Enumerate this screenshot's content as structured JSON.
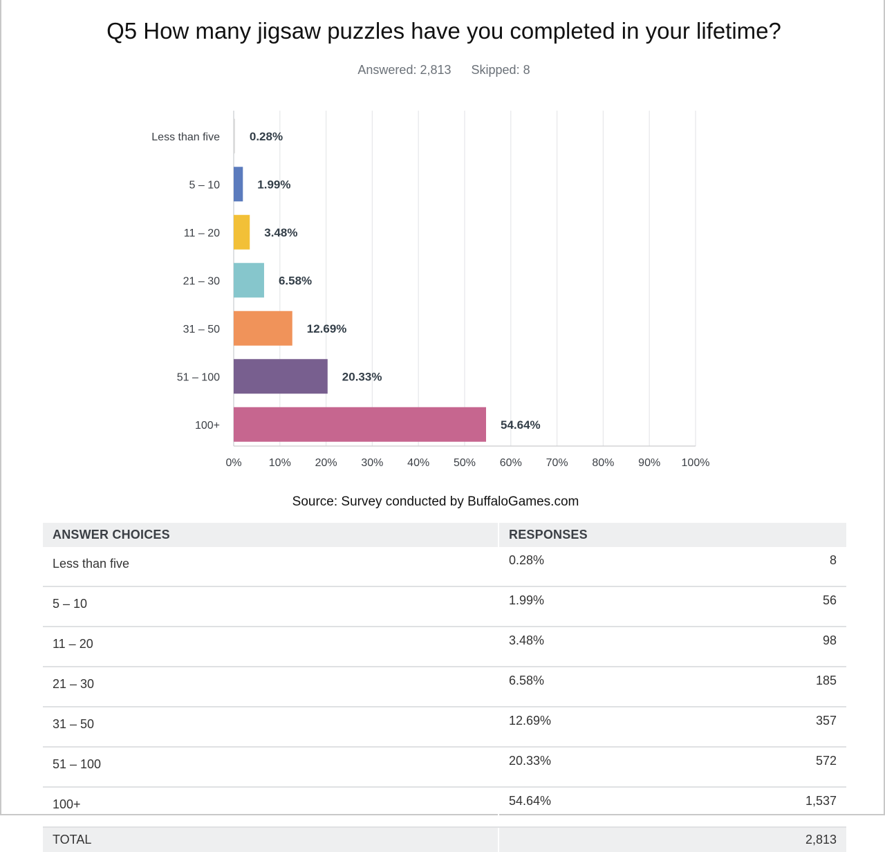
{
  "question": "Q5 How many jigsaw puzzles have you completed in your lifetime?",
  "answered_text": "Answered: 2,813",
  "skipped_text": "Skipped: 8",
  "source": "Source: Survey conducted by BuffaloGames.com",
  "colors": {
    "grid": "#e6e7e9",
    "bar_label": "#333e48",
    "axis_label": "#3b3f45"
  },
  "chart_data": {
    "type": "bar",
    "orientation": "horizontal",
    "categories": [
      "Less than five",
      "5 – 10",
      "11 – 20",
      "21 – 30",
      "31 – 50",
      "51 – 100",
      "100+"
    ],
    "values": [
      0.28,
      1.99,
      3.48,
      6.58,
      12.69,
      20.33,
      54.64
    ],
    "value_labels": [
      "0.28%",
      "1.99%",
      "3.48%",
      "6.58%",
      "12.69%",
      "20.33%",
      "54.64%"
    ],
    "colors": [
      "#d9d9d9",
      "#5b7bbd",
      "#f2c037",
      "#86c6cc",
      "#f0935a",
      "#785f8f",
      "#c6668f"
    ],
    "xlim": [
      0,
      100
    ],
    "xticks": [
      "0%",
      "10%",
      "20%",
      "30%",
      "40%",
      "50%",
      "60%",
      "70%",
      "80%",
      "90%",
      "100%"
    ],
    "grid": true
  },
  "table": {
    "headers": {
      "choice": "ANSWER CHOICES",
      "responses": "RESPONSES"
    },
    "rows": [
      {
        "choice": "Less than five",
        "pct": "0.28%",
        "count": "8"
      },
      {
        "choice": "5 – 10",
        "pct": "1.99%",
        "count": "56"
      },
      {
        "choice": "11 – 20",
        "pct": "3.48%",
        "count": "98"
      },
      {
        "choice": "21 – 30",
        "pct": "6.58%",
        "count": "185"
      },
      {
        "choice": "31 – 50",
        "pct": "12.69%",
        "count": "357"
      },
      {
        "choice": "51 – 100",
        "pct": "20.33%",
        "count": "572"
      },
      {
        "choice": "100+",
        "pct": "54.64%",
        "count": "1,537"
      }
    ],
    "total_label": "TOTAL",
    "total_count": "2,813"
  }
}
